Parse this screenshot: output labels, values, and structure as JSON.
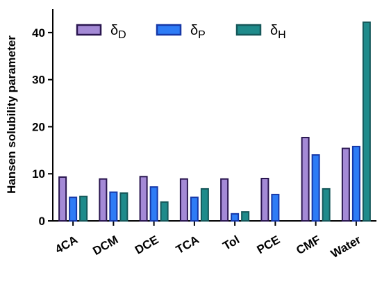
{
  "chart_data": {
    "type": "bar",
    "y_label": "Hansen solubility parameter",
    "categories": [
      "4CA",
      "DCM",
      "DCE",
      "TCA",
      "Tol",
      "PCE",
      "CMF",
      "Water"
    ],
    "series": [
      {
        "name": "δD",
        "color": "#a48ad6",
        "edgecolor": "#2a1650",
        "values": [
          9.3,
          8.9,
          9.4,
          8.9,
          8.9,
          9.0,
          17.7,
          15.4
        ]
      },
      {
        "name": "δP",
        "color": "#2e7cf6",
        "edgecolor": "#1638a8",
        "values": [
          5.0,
          6.1,
          7.2,
          5.0,
          1.5,
          5.6,
          14.0,
          15.8
        ]
      },
      {
        "name": "δH",
        "color": "#1f8b8b",
        "edgecolor": "#16585a",
        "values": [
          5.2,
          5.9,
          4.0,
          6.8,
          1.9,
          null,
          6.8,
          42.2
        ]
      }
    ],
    "ylim": [
      0,
      45
    ],
    "yticks": [
      0,
      10,
      20,
      30,
      40
    ],
    "legend": "top-left"
  }
}
